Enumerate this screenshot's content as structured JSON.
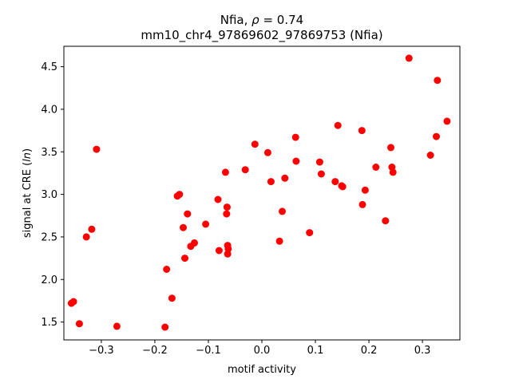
{
  "chart_data": {
    "type": "scatter",
    "title_line1_name": "Nfia, ",
    "title_line1_rho": "ρ",
    "title_line1_value": " = 0.74",
    "title_line2": "mm10_chr4_97869602_97869753 (Nfia)",
    "xlabel": "motif activity",
    "ylabel_prefix": "signal at CRE (",
    "ylabel_italic": "ln",
    "ylabel_suffix": ")",
    "xlim": [
      -0.37,
      0.37
    ],
    "ylim": [
      1.29,
      4.74
    ],
    "xticks": [
      -0.3,
      -0.2,
      -0.1,
      0.0,
      0.1,
      0.2,
      0.3
    ],
    "xtick_labels": [
      "−0.3",
      "−0.2",
      "−0.1",
      "0.0",
      "0.1",
      "0.2",
      "0.3"
    ],
    "yticks": [
      1.5,
      2.0,
      2.5,
      3.0,
      3.5,
      4.0,
      4.5
    ],
    "ytick_labels": [
      "1.5",
      "2.0",
      "2.5",
      "3.0",
      "3.5",
      "4.0",
      "4.5"
    ],
    "grid": false,
    "marker_color": "#ff0000",
    "x": [
      -0.356,
      -0.352,
      -0.341,
      -0.328,
      -0.318,
      -0.309,
      -0.271,
      -0.181,
      -0.178,
      -0.168,
      -0.158,
      -0.154,
      -0.147,
      -0.144,
      -0.139,
      -0.133,
      -0.126,
      -0.105,
      -0.082,
      -0.08,
      -0.068,
      -0.066,
      -0.065,
      -0.064,
      -0.064,
      -0.063,
      -0.031,
      -0.013,
      0.011,
      0.017,
      0.033,
      0.038,
      0.043,
      0.063,
      0.064,
      0.089,
      0.108,
      0.111,
      0.137,
      0.142,
      0.149,
      0.151,
      0.187,
      0.188,
      0.193,
      0.213,
      0.231,
      0.241,
      0.243,
      0.245,
      0.275,
      0.315,
      0.326,
      0.328,
      0.346
    ],
    "y": [
      1.72,
      1.74,
      1.48,
      2.5,
      2.59,
      3.53,
      1.45,
      1.44,
      2.12,
      1.78,
      2.98,
      3.0,
      2.61,
      2.25,
      2.77,
      2.39,
      2.43,
      2.65,
      2.94,
      2.34,
      3.26,
      2.77,
      2.85,
      2.3,
      2.4,
      2.36,
      3.29,
      3.59,
      3.49,
      3.15,
      2.45,
      2.8,
      3.19,
      3.67,
      3.39,
      2.55,
      3.38,
      3.24,
      3.15,
      3.81,
      3.1,
      3.09,
      3.75,
      2.88,
      3.05,
      3.32,
      2.69,
      3.55,
      3.32,
      3.26,
      4.6,
      3.46,
      3.68,
      4.34,
      3.86
    ]
  }
}
